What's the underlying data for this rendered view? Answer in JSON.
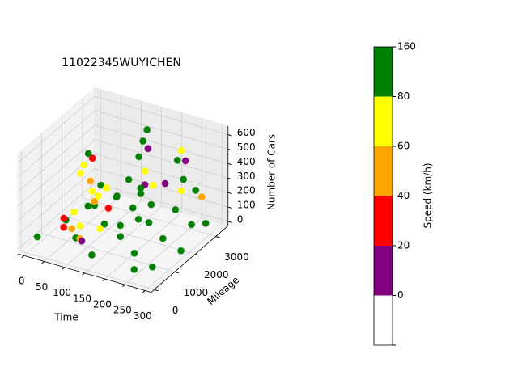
{
  "chart_data": {
    "type": "scatter3d",
    "title": "11022345WUYICHEN",
    "xlabel": "Time",
    "ylabel": "Mileage",
    "zlabel": "Number of Cars",
    "xlim": [
      -15,
      315
    ],
    "ylim": [
      -150,
      3600
    ],
    "zlim": [
      -30,
      660
    ],
    "xticks": [
      0,
      50,
      100,
      150,
      200,
      250,
      300
    ],
    "yticks": [
      0,
      1000,
      2000,
      3000
    ],
    "zticks": [
      0,
      100,
      200,
      300,
      400,
      500,
      600
    ],
    "grid": true,
    "x": [
      0,
      20,
      40,
      60,
      80,
      100,
      120,
      140,
      160,
      180,
      200,
      220,
      240,
      260,
      280,
      300,
      290,
      10,
      150,
      250,
      30,
      35,
      40,
      45,
      50,
      60,
      70,
      90,
      100,
      110,
      120,
      130,
      140,
      150,
      155,
      160,
      165,
      170,
      175,
      180,
      190,
      200,
      210,
      220,
      225,
      230,
      235,
      240,
      250,
      260,
      40,
      50,
      55,
      65,
      80,
      95,
      110,
      130,
      170,
      200
    ],
    "y": [
      500,
      1500,
      2500,
      3200,
      800,
      1800,
      2800,
      400,
      1400,
      2400,
      3300,
      900,
      1900,
      2900,
      600,
      1600,
      3000,
      3400,
      3100,
      300,
      2000,
      2100,
      2200,
      2300,
      2100,
      2000,
      1900,
      1200,
      1500,
      1700,
      1600,
      1800,
      2200,
      2500,
      2600,
      2700,
      2650,
      2400,
      2300,
      2000,
      1800,
      2200,
      2600,
      3000,
      3100,
      3200,
      3000,
      2800,
      3300,
      3400,
      1000,
      800,
      1200,
      900,
      1000,
      700,
      500,
      1000,
      1200,
      1500
    ],
    "z": [
      20,
      30,
      25,
      20,
      40,
      30,
      35,
      20,
      40,
      30,
      25,
      35,
      30,
      20,
      25,
      30,
      40,
      30,
      45,
      20,
      300,
      350,
      420,
      380,
      250,
      200,
      150,
      220,
      260,
      300,
      180,
      240,
      320,
      450,
      550,
      620,
      500,
      380,
      300,
      280,
      350,
      330,
      300,
      420,
      480,
      400,
      300,
      250,
      200,
      150,
      120,
      90,
      150,
      80,
      100,
      60,
      80,
      120,
      150,
      180
    ],
    "c": [
      100,
      95,
      110,
      90,
      120,
      105,
      100,
      115,
      98,
      102,
      108,
      96,
      112,
      104,
      99,
      101,
      93,
      107,
      100,
      94,
      70,
      65,
      85,
      30,
      50,
      75,
      45,
      90,
      70,
      62,
      35,
      85,
      90,
      88,
      82,
      85,
      15,
      70,
      10,
      92,
      86,
      75,
      18,
      82,
      65,
      12,
      88,
      70,
      84,
      55,
      30,
      25,
      65,
      42,
      68,
      50,
      15,
      75,
      90,
      83
    ],
    "colorbar": {
      "label": "Speed (km/h)",
      "levels": [
        0,
        20,
        40,
        60,
        80,
        160
      ],
      "colors": [
        "#ffffff",
        "#800080",
        "#ff0000",
        "#ffa500",
        "#ffff00",
        "#008000"
      ]
    }
  }
}
